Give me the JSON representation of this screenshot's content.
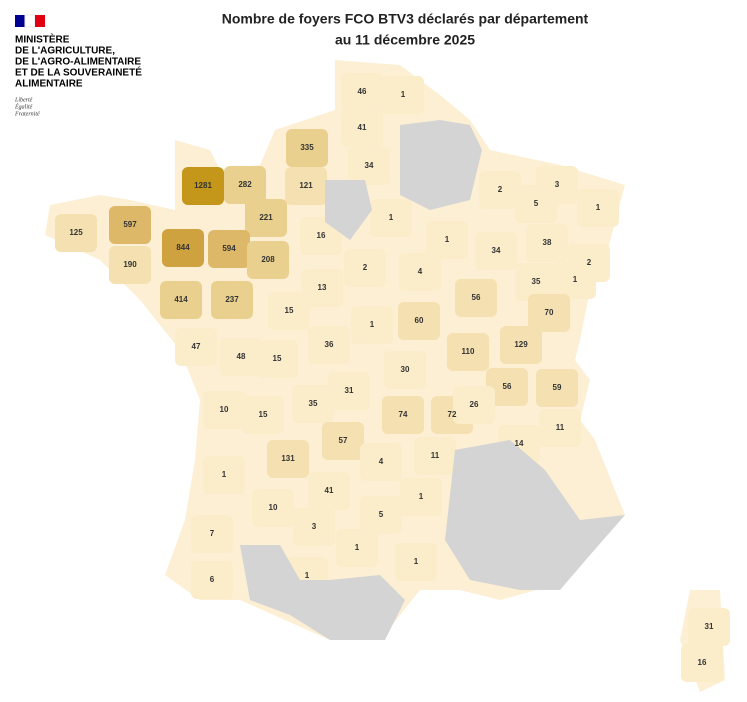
{
  "header": {
    "ministry_lines": [
      "MINISTÈRE",
      "DE L'AGRICULTURE,",
      "DE L'AGRO-ALIMENTAIRE",
      "ET DE LA SOUVERAINETÉ",
      "ALIMENTAIRE"
    ],
    "motto": [
      "Liberté",
      "Égalité",
      "Fraternité"
    ]
  },
  "title_lines": [
    "Nombre de foyers FCO BTV3 déclarés par département",
    "au 11 décembre 2025"
  ],
  "map": {
    "values": [
      46,
      1,
      41,
      335,
      34,
      1281,
      282,
      121,
      2,
      3,
      5,
      1,
      1,
      597,
      221,
      125,
      16,
      844,
      594,
      1,
      34,
      38,
      190,
      208,
      2,
      4,
      1,
      2,
      35,
      13,
      414,
      237,
      56,
      15,
      70,
      1,
      60,
      47,
      36,
      129,
      48,
      15,
      110,
      30,
      31,
      56,
      59,
      10,
      15,
      35,
      74,
      72,
      26,
      11,
      57,
      14,
      131,
      4,
      11,
      1,
      41,
      1,
      10,
      5,
      3,
      7,
      1,
      1,
      6,
      1,
      31,
      16
    ]
  }
}
